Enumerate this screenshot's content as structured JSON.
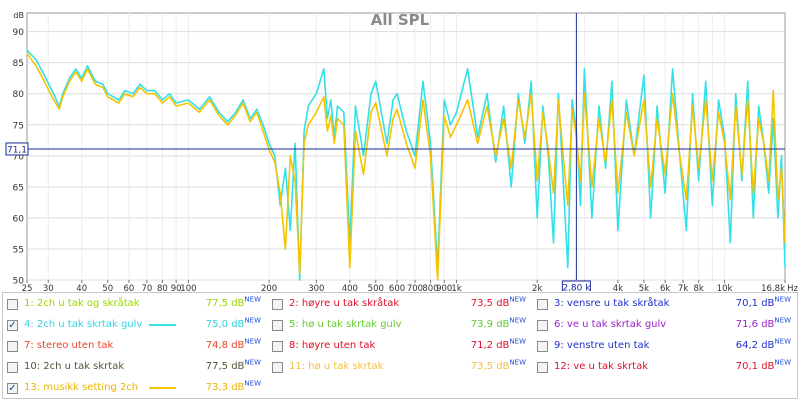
{
  "chart_data": {
    "type": "line",
    "title": "All SPL",
    "x_scale": "log",
    "xlim": [
      25,
      16800
    ],
    "ylim": [
      50,
      93
    ],
    "x_tick_labels": [
      {
        "f": 25,
        "label": "25"
      },
      {
        "f": 30,
        "label": "30"
      },
      {
        "f": 40,
        "label": "40"
      },
      {
        "f": 50,
        "label": "50"
      },
      {
        "f": 60,
        "label": "60"
      },
      {
        "f": 70,
        "label": "70"
      },
      {
        "f": 80,
        "label": "80"
      },
      {
        "f": 90,
        "label": "90"
      },
      {
        "f": 100,
        "label": "100"
      },
      {
        "f": 200,
        "label": "200"
      },
      {
        "f": 300,
        "label": "300"
      },
      {
        "f": 400,
        "label": "400"
      },
      {
        "f": 500,
        "label": "500"
      },
      {
        "f": 600,
        "label": "600"
      },
      {
        "f": 700,
        "label": "700"
      },
      {
        "f": 800,
        "label": "800"
      },
      {
        "f": 900,
        "label": "900"
      },
      {
        "f": 1000,
        "label": "1k"
      },
      {
        "f": 2000,
        "label": "2k"
      },
      {
        "f": 3000,
        "label": "3k"
      },
      {
        "f": 4000,
        "label": "4k"
      },
      {
        "f": 5000,
        "label": "5k"
      },
      {
        "f": 6000,
        "label": "6k"
      },
      {
        "f": 7000,
        "label": "7k"
      },
      {
        "f": 8000,
        "label": "8k"
      },
      {
        "f": 10000,
        "label": "10k"
      },
      {
        "f": 16800,
        "label": "16,8k"
      }
    ],
    "x_unit": "Hz",
    "y_ticks": [
      50,
      55,
      60,
      65,
      70,
      75,
      80,
      85,
      90
    ],
    "y_unit": "dB",
    "grid": true,
    "cursor": {
      "x": 2800,
      "x_label": "2,80 k",
      "y": 71.1,
      "y_label": "71,1"
    },
    "series": [
      {
        "name": "4: 2ch u tak skrtak gulv",
        "color": "#33e0e8",
        "points": [
          [
            25,
            87.0
          ],
          [
            27,
            85.5
          ],
          [
            29,
            83.0
          ],
          [
            31,
            80.5
          ],
          [
            33,
            78.0
          ],
          [
            34,
            80.0
          ],
          [
            36,
            82.5
          ],
          [
            38,
            84.0
          ],
          [
            40,
            82.5
          ],
          [
            42,
            84.5
          ],
          [
            45,
            82.0
          ],
          [
            48,
            81.5
          ],
          [
            50,
            80.0
          ],
          [
            55,
            79.0
          ],
          [
            58,
            80.5
          ],
          [
            62,
            80.0
          ],
          [
            66,
            81.5
          ],
          [
            70,
            80.5
          ],
          [
            75,
            80.5
          ],
          [
            80,
            79.0
          ],
          [
            85,
            80.0
          ],
          [
            90,
            78.5
          ],
          [
            100,
            79.0
          ],
          [
            110,
            77.5
          ],
          [
            120,
            79.5
          ],
          [
            130,
            77.0
          ],
          [
            140,
            75.5
          ],
          [
            150,
            77.0
          ],
          [
            160,
            79.0
          ],
          [
            170,
            76.0
          ],
          [
            180,
            77.5
          ],
          [
            190,
            75.0
          ],
          [
            200,
            72.0
          ],
          [
            210,
            70.0
          ],
          [
            220,
            62.0
          ],
          [
            230,
            68.0
          ],
          [
            240,
            58.0
          ],
          [
            250,
            72.0
          ],
          [
            260,
            50.0
          ],
          [
            270,
            74.0
          ],
          [
            280,
            78.0
          ],
          [
            300,
            80.0
          ],
          [
            320,
            84.0
          ],
          [
            330,
            76.0
          ],
          [
            340,
            79.0
          ],
          [
            350,
            73.0
          ],
          [
            360,
            78.0
          ],
          [
            380,
            77.0
          ],
          [
            400,
            56.0
          ],
          [
            420,
            78.0
          ],
          [
            450,
            70.0
          ],
          [
            480,
            80.0
          ],
          [
            500,
            82.0
          ],
          [
            550,
            72.0
          ],
          [
            580,
            79.0
          ],
          [
            600,
            80.0
          ],
          [
            650,
            74.0
          ],
          [
            700,
            70.0
          ],
          [
            750,
            82.0
          ],
          [
            800,
            72.0
          ],
          [
            850,
            52.0
          ],
          [
            900,
            79.0
          ],
          [
            950,
            75.0
          ],
          [
            1000,
            77.0
          ],
          [
            1100,
            84.0
          ],
          [
            1200,
            73.0
          ],
          [
            1300,
            80.0
          ],
          [
            1400,
            69.0
          ],
          [
            1500,
            78.0
          ],
          [
            1600,
            65.0
          ],
          [
            1700,
            80.0
          ],
          [
            1800,
            72.0
          ],
          [
            1900,
            82.0
          ],
          [
            2000,
            60.0
          ],
          [
            2100,
            78.0
          ],
          [
            2200,
            70.0
          ],
          [
            2300,
            56.0
          ],
          [
            2400,
            80.0
          ],
          [
            2500,
            66.0
          ],
          [
            2600,
            52.0
          ],
          [
            2700,
            79.0
          ],
          [
            2800,
            74.0
          ],
          [
            2900,
            62.0
          ],
          [
            3000,
            84.0
          ],
          [
            3200,
            60.0
          ],
          [
            3400,
            78.0
          ],
          [
            3600,
            68.0
          ],
          [
            3800,
            82.0
          ],
          [
            4000,
            58.0
          ],
          [
            4300,
            79.0
          ],
          [
            4600,
            70.0
          ],
          [
            5000,
            83.0
          ],
          [
            5300,
            60.0
          ],
          [
            5600,
            78.0
          ],
          [
            6000,
            64.0
          ],
          [
            6400,
            84.0
          ],
          [
            6800,
            70.0
          ],
          [
            7200,
            58.0
          ],
          [
            7600,
            80.0
          ],
          [
            8000,
            66.0
          ],
          [
            8500,
            82.0
          ],
          [
            9000,
            62.0
          ],
          [
            9500,
            79.0
          ],
          [
            10000,
            73.0
          ],
          [
            10500,
            56.0
          ],
          [
            11000,
            80.0
          ],
          [
            11600,
            66.0
          ],
          [
            12200,
            82.0
          ],
          [
            12800,
            60.0
          ],
          [
            13400,
            78.0
          ],
          [
            14000,
            72.0
          ],
          [
            14600,
            64.0
          ],
          [
            15200,
            76.0
          ],
          [
            15800,
            60.0
          ],
          [
            16300,
            70.0
          ],
          [
            16800,
            52.0
          ]
        ]
      },
      {
        "name": "13: musikk setting 2ch",
        "color": "#f5c400",
        "points": [
          [
            25,
            86.5
          ],
          [
            27,
            84.5
          ],
          [
            29,
            82.0
          ],
          [
            31,
            79.5
          ],
          [
            33,
            77.5
          ],
          [
            34,
            79.5
          ],
          [
            36,
            82.0
          ],
          [
            38,
            83.5
          ],
          [
            40,
            82.0
          ],
          [
            42,
            84.0
          ],
          [
            45,
            81.5
          ],
          [
            48,
            81.0
          ],
          [
            50,
            79.5
          ],
          [
            55,
            78.5
          ],
          [
            58,
            80.0
          ],
          [
            62,
            79.5
          ],
          [
            66,
            81.0
          ],
          [
            70,
            80.0
          ],
          [
            75,
            80.0
          ],
          [
            80,
            78.5
          ],
          [
            85,
            79.5
          ],
          [
            90,
            78.0
          ],
          [
            100,
            78.5
          ],
          [
            110,
            77.0
          ],
          [
            120,
            79.0
          ],
          [
            130,
            76.5
          ],
          [
            140,
            75.0
          ],
          [
            150,
            76.5
          ],
          [
            160,
            78.5
          ],
          [
            170,
            75.5
          ],
          [
            180,
            77.0
          ],
          [
            190,
            74.0
          ],
          [
            200,
            71.0
          ],
          [
            210,
            69.0
          ],
          [
            220,
            64.0
          ],
          [
            230,
            55.0
          ],
          [
            240,
            70.0
          ],
          [
            250,
            66.0
          ],
          [
            260,
            51.0
          ],
          [
            270,
            72.0
          ],
          [
            280,
            75.0
          ],
          [
            300,
            77.0
          ],
          [
            320,
            79.5
          ],
          [
            330,
            74.0
          ],
          [
            340,
            76.5
          ],
          [
            350,
            72.0
          ],
          [
            360,
            76.0
          ],
          [
            380,
            75.0
          ],
          [
            400,
            52.0
          ],
          [
            420,
            74.0
          ],
          [
            450,
            67.0
          ],
          [
            480,
            77.0
          ],
          [
            500,
            78.5
          ],
          [
            550,
            70.0
          ],
          [
            580,
            76.0
          ],
          [
            600,
            77.5
          ],
          [
            650,
            72.0
          ],
          [
            700,
            68.0
          ],
          [
            750,
            79.0
          ],
          [
            800,
            70.0
          ],
          [
            850,
            50.0
          ],
          [
            900,
            76.5
          ],
          [
            950,
            73.0
          ],
          [
            1000,
            75.0
          ],
          [
            1100,
            79.0
          ],
          [
            1200,
            72.0
          ],
          [
            1300,
            78.0
          ],
          [
            1400,
            70.0
          ],
          [
            1500,
            76.0
          ],
          [
            1600,
            68.0
          ],
          [
            1700,
            79.0
          ],
          [
            1800,
            73.0
          ],
          [
            1900,
            80.0
          ],
          [
            2000,
            66.0
          ],
          [
            2100,
            77.0
          ],
          [
            2200,
            71.0
          ],
          [
            2300,
            64.0
          ],
          [
            2400,
            79.0
          ],
          [
            2500,
            70.0
          ],
          [
            2600,
            62.0
          ],
          [
            2700,
            77.5
          ],
          [
            2800,
            73.0
          ],
          [
            2900,
            66.0
          ],
          [
            3000,
            80.0
          ],
          [
            3200,
            65.0
          ],
          [
            3400,
            76.0
          ],
          [
            3600,
            69.0
          ],
          [
            3800,
            79.0
          ],
          [
            4000,
            64.0
          ],
          [
            4300,
            77.0
          ],
          [
            4600,
            70.0
          ],
          [
            5000,
            79.0
          ],
          [
            5300,
            65.0
          ],
          [
            5600,
            76.0
          ],
          [
            6000,
            67.0
          ],
          [
            6400,
            80.0
          ],
          [
            6800,
            70.0
          ],
          [
            7200,
            63.0
          ],
          [
            7600,
            78.0
          ],
          [
            8000,
            68.0
          ],
          [
            8500,
            79.0
          ],
          [
            9000,
            66.0
          ],
          [
            9500,
            77.0
          ],
          [
            10000,
            72.0
          ],
          [
            10500,
            63.0
          ],
          [
            11000,
            78.0
          ],
          [
            11600,
            67.0
          ],
          [
            12200,
            79.0
          ],
          [
            12800,
            64.0
          ],
          [
            13400,
            76.0
          ],
          [
            14000,
            72.0
          ],
          [
            14600,
            66.0
          ],
          [
            15200,
            80.5
          ],
          [
            15800,
            63.0
          ],
          [
            16300,
            68.0
          ],
          [
            16800,
            56.0
          ]
        ]
      }
    ]
  },
  "legend": {
    "new_tag": "NEW",
    "items": [
      {
        "label": "1: 2ch u tak og skråtak",
        "value": "77,5 dB",
        "checked": false,
        "color": "#9ad400",
        "line_color": ""
      },
      {
        "label": "2: høyre u tak skråtak",
        "value": "73,5 dB",
        "checked": false,
        "color": "#e0102a",
        "line_color": ""
      },
      {
        "label": "3: vensre u tak skråtak",
        "value": "70,1 dB",
        "checked": false,
        "color": "#2030c8",
        "line_color": ""
      },
      {
        "label": "4: 2ch u tak skrtak gulv",
        "value": "75,0 dB",
        "checked": true,
        "color": "#33d4e0",
        "line_color": "#33e0e8"
      },
      {
        "label": "5: hø u tak skrtak gulv",
        "value": "73,9 dB",
        "checked": false,
        "color": "#66cc33",
        "line_color": ""
      },
      {
        "label": "6: ve u tak skrtak gulv",
        "value": "71,6 dB",
        "checked": false,
        "color": "#9a22c8",
        "line_color": ""
      },
      {
        "label": "7: stereo uten tak",
        "value": "74,8 dB",
        "checked": false,
        "color": "#e8462a",
        "line_color": ""
      },
      {
        "label": "8: høyre uten tak",
        "value": "71,2 dB",
        "checked": false,
        "color": "#e0102a",
        "line_color": ""
      },
      {
        "label": "9: venstre uten tak",
        "value": "64,2 dB",
        "checked": false,
        "color": "#2030c8",
        "line_color": ""
      },
      {
        "label": "10: 2ch u tak skrtak",
        "value": "77,5 dB",
        "checked": false,
        "color": "#555533",
        "line_color": ""
      },
      {
        "label": "11: hø u tak skrtak",
        "value": "73,5 dB",
        "checked": false,
        "color": "#f0c040",
        "line_color": ""
      },
      {
        "label": "12: ve u tak skrtak",
        "value": "70,1 dB",
        "checked": false,
        "color": "#e0102a",
        "line_color": ""
      },
      {
        "label": "13: musikk setting 2ch",
        "value": "73,3 dB",
        "checked": true,
        "color": "#e8b400",
        "line_color": "#f5c400"
      }
    ]
  }
}
